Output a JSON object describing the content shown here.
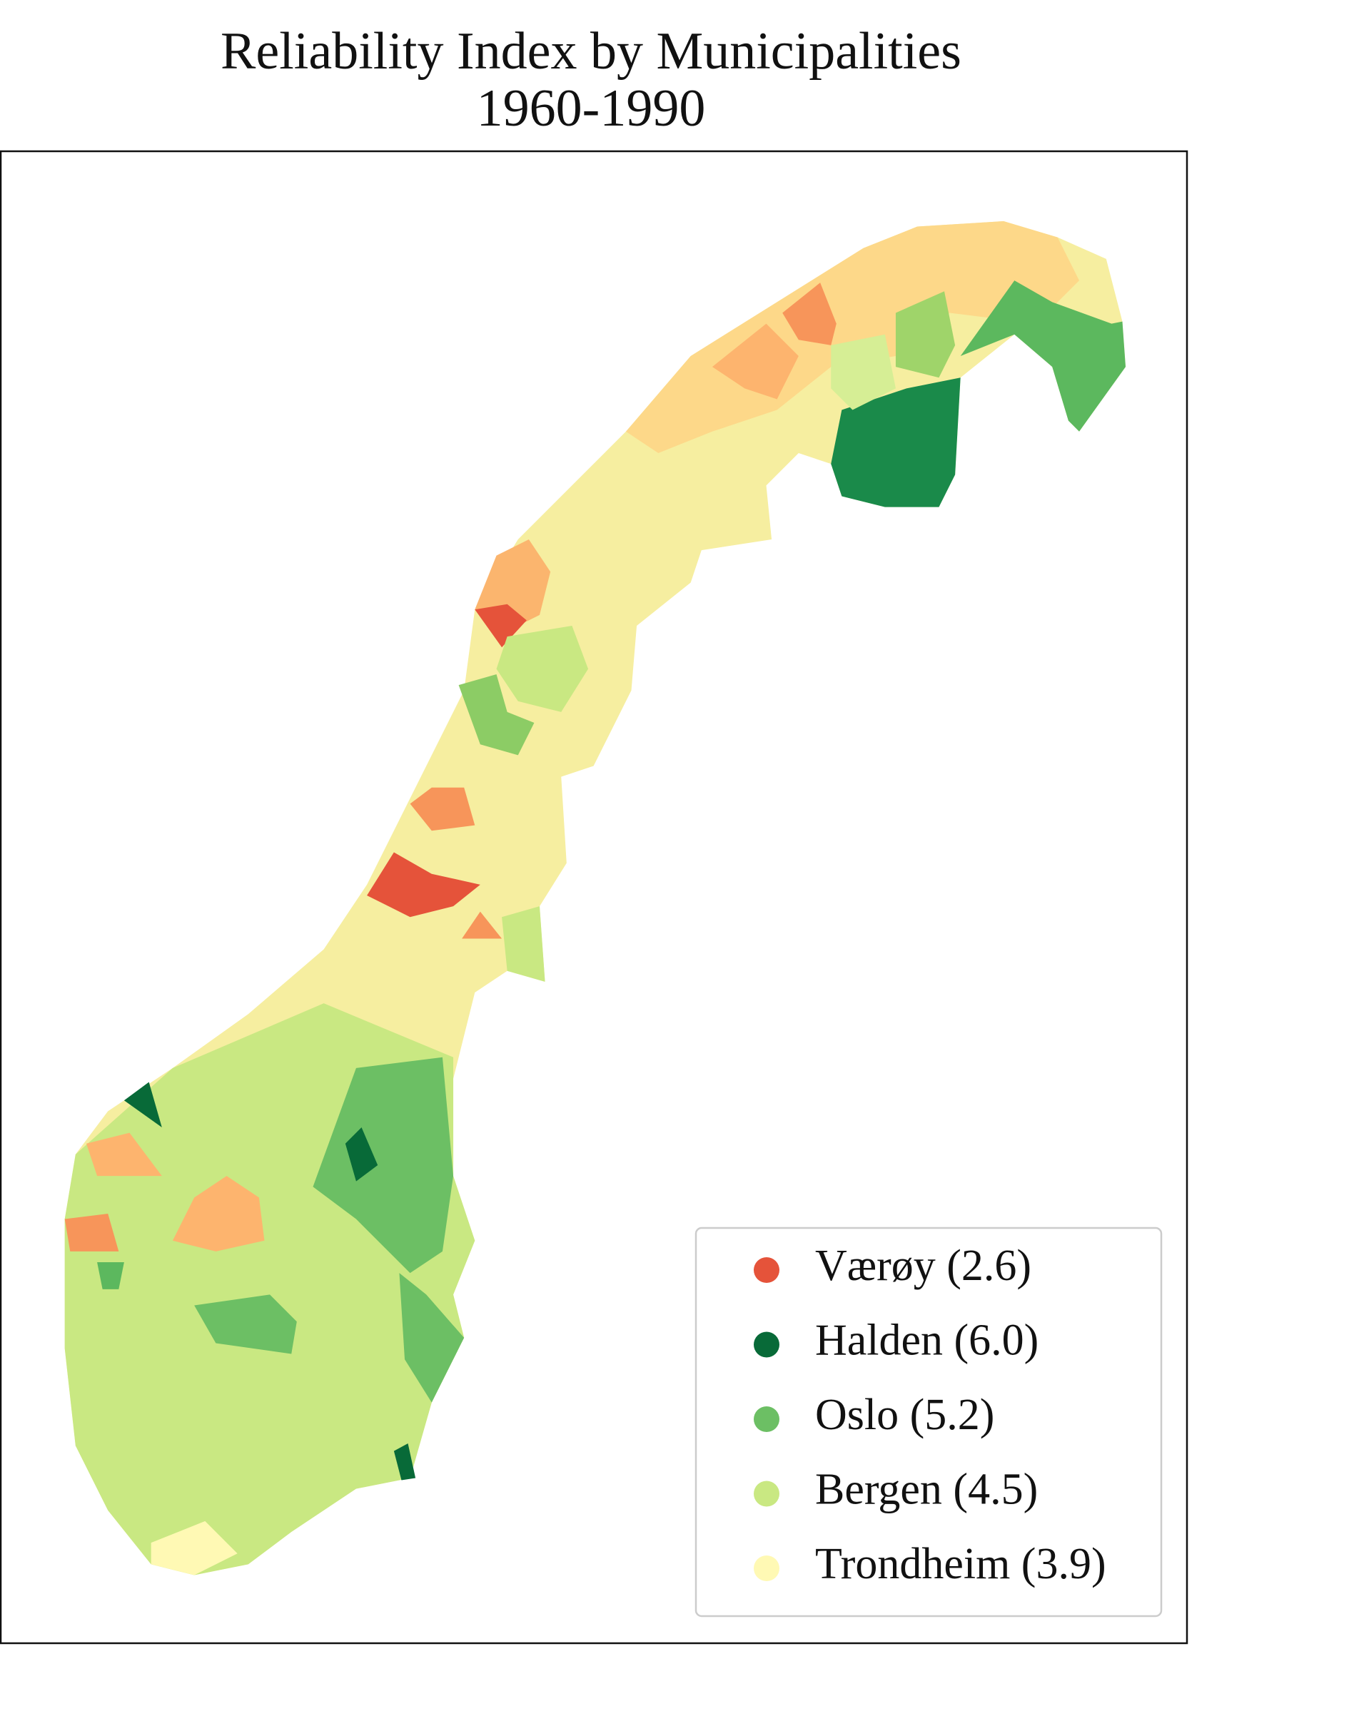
{
  "title": "Reliability Index by Municipalities",
  "subtitle": "1960-1990",
  "legend": [
    {
      "label": "Værøy (2.6)",
      "color": "#e5533a"
    },
    {
      "label": "Halden (6.0)",
      "color": "#086a38"
    },
    {
      "label": "Oslo (5.2)",
      "color": "#6cbf64"
    },
    {
      "label": "Bergen (4.5)",
      "color": "#c9e882"
    },
    {
      "label": "Trondheim (3.9)",
      "color": "#fff9b4"
    }
  ]
}
